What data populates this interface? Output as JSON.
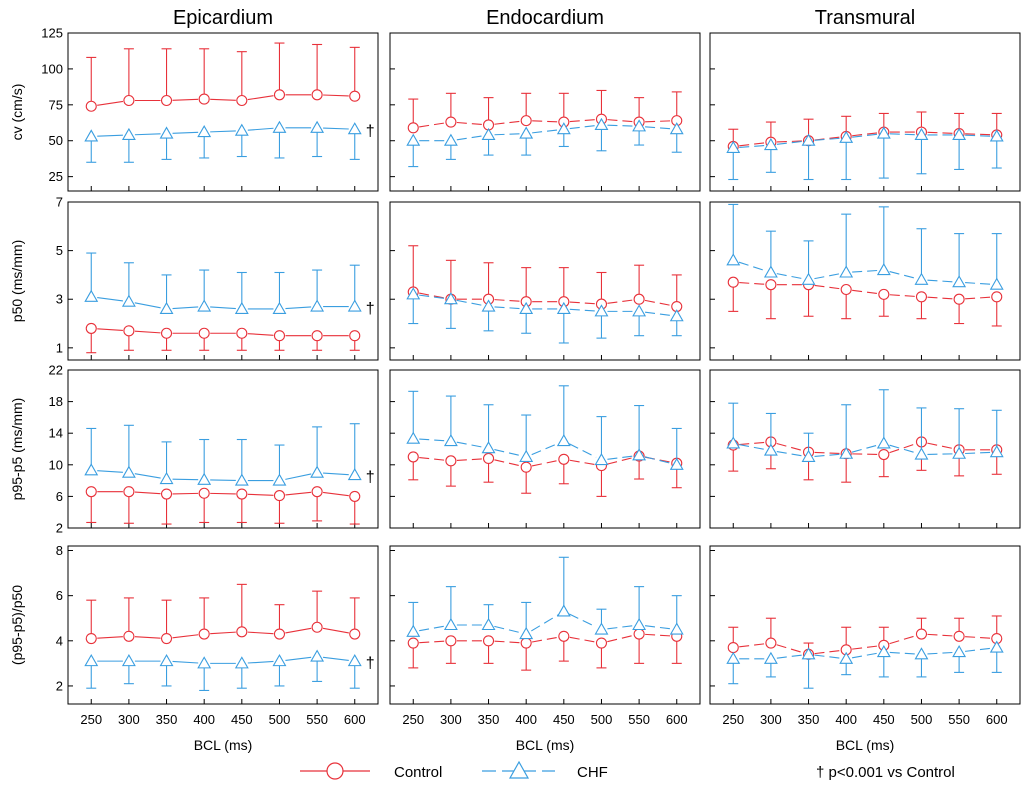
{
  "chart_data": {
    "type": "line",
    "columns": [
      "Epicardium",
      "Endocardium",
      "Transmural"
    ],
    "xlabel": "BCL  (ms)",
    "x": [
      250,
      300,
      350,
      400,
      450,
      500,
      550,
      600
    ],
    "legend": {
      "control": "Control",
      "chf": "CHF",
      "note": "† p<0.001 vs Control",
      "position": "bottom"
    },
    "colors": {
      "control": "#e8313a",
      "chf": "#3a9ee0"
    },
    "marker_symbol": "†",
    "rows": [
      {
        "ylabel": "cv (cm/s)",
        "ylim": [
          15,
          125
        ],
        "yticks": [
          25,
          50,
          75,
          100,
          125
        ],
        "panels": [
          {
            "control": [
              74,
              78,
              78,
              79,
              78,
              82,
              82,
              81
            ],
            "control_err": [
              108,
              114,
              114,
              114,
              112,
              118,
              117,
              115
            ],
            "chf": [
              53,
              54,
              55,
              56,
              57,
              59,
              59,
              58
            ],
            "chf_err": [
              35,
              35,
              37,
              38,
              39,
              38,
              39,
              37
            ],
            "sig": true
          },
          {
            "control": [
              59,
              63,
              61,
              64,
              63,
              65,
              63,
              64
            ],
            "control_err": [
              79,
              83,
              80,
              83,
              83,
              85,
              80,
              84
            ],
            "chf": [
              50,
              50,
              54,
              55,
              58,
              61,
              60,
              58
            ],
            "chf_err": [
              32,
              37,
              40,
              40,
              46,
              43,
              47,
              42
            ],
            "sig": false
          },
          {
            "control": [
              46,
              49,
              50,
              53,
              56,
              56,
              55,
              54
            ],
            "control_err": [
              58,
              63,
              65,
              67,
              69,
              70,
              69,
              69
            ],
            "chf": [
              45,
              47,
              50,
              52,
              55,
              54,
              54,
              53
            ],
            "chf_err": [
              23,
              28,
              23,
              23,
              24,
              27,
              30,
              31
            ],
            "sig": false
          }
        ]
      },
      {
        "ylabel": "p50 (ms/mm)",
        "ylim": [
          0.5,
          7
        ],
        "yticks": [
          1,
          3,
          5,
          7
        ],
        "panels": [
          {
            "control": [
              1.8,
              1.7,
              1.6,
              1.6,
              1.6,
              1.5,
              1.5,
              1.5
            ],
            "control_err": [
              0.8,
              0.9,
              0.9,
              0.9,
              0.9,
              0.9,
              0.9,
              0.9
            ],
            "chf": [
              3.1,
              2.9,
              2.6,
              2.7,
              2.6,
              2.6,
              2.7,
              2.7
            ],
            "chf_err": [
              4.9,
              4.5,
              4.0,
              4.2,
              4.1,
              4.1,
              4.2,
              4.4
            ],
            "sig": true
          },
          {
            "control": [
              3.3,
              3.0,
              3.0,
              2.9,
              2.9,
              2.8,
              3.0,
              2.7
            ],
            "control_err": [
              5.2,
              4.6,
              4.5,
              4.3,
              4.3,
              4.1,
              4.4,
              4.0
            ],
            "chf": [
              3.2,
              3.0,
              2.7,
              2.6,
              2.6,
              2.5,
              2.5,
              2.3
            ],
            "chf_err": [
              2.0,
              1.8,
              1.7,
              1.6,
              1.2,
              1.4,
              1.5,
              1.5
            ],
            "sig": false
          },
          {
            "control": [
              3.7,
              3.6,
              3.6,
              3.4,
              3.2,
              3.1,
              3.0,
              3.1
            ],
            "control_err": [
              2.5,
              2.2,
              2.3,
              2.2,
              2.3,
              2.2,
              2.0,
              1.9
            ],
            "chf": [
              4.6,
              4.1,
              3.8,
              4.1,
              4.2,
              3.8,
              3.7,
              3.6
            ],
            "chf_err": [
              6.9,
              5.8,
              5.4,
              6.5,
              6.8,
              5.9,
              5.7,
              5.7
            ],
            "sig": false
          }
        ]
      },
      {
        "ylabel": "p95-p5 (ms/mm)",
        "ylim": [
          2,
          22
        ],
        "yticks": [
          2,
          6,
          10,
          14,
          18,
          22
        ],
        "extra_ticks": [],
        "panels": [
          {
            "control": [
              6.6,
              6.6,
              6.3,
              6.4,
              6.3,
              6.1,
              6.6,
              6.0
            ],
            "control_err": [
              2.7,
              2.6,
              2.5,
              2.7,
              2.7,
              2.6,
              2.9,
              2.5
            ],
            "chf": [
              9.3,
              9.0,
              8.2,
              8.1,
              8.0,
              8.0,
              9.0,
              8.7
            ],
            "chf_err": [
              14.6,
              15.0,
              12.9,
              13.2,
              13.2,
              12.5,
              14.8,
              15.2
            ],
            "sig": true
          },
          {
            "control": [
              11.0,
              10.5,
              10.8,
              9.7,
              10.7,
              9.9,
              11.1,
              10.2
            ],
            "control_err": [
              8.1,
              7.3,
              7.8,
              6.4,
              7.6,
              6.0,
              8.2,
              7.1
            ],
            "chf": [
              13.3,
              13.0,
              12.1,
              11.0,
              13.0,
              10.6,
              11.2,
              10.0
            ],
            "chf_err": [
              19.3,
              18.7,
              17.6,
              16.3,
              20.0,
              16.1,
              17.5,
              14.6
            ],
            "sig": false
          },
          {
            "control": [
              12.5,
              12.9,
              11.6,
              11.4,
              11.3,
              12.9,
              11.9,
              11.9
            ],
            "control_err": [
              9.2,
              9.5,
              8.1,
              7.8,
              8.5,
              9.3,
              8.6,
              8.8
            ],
            "chf": [
              12.7,
              11.8,
              11.0,
              11.4,
              12.7,
              11.3,
              11.4,
              11.6
            ],
            "chf_err": [
              17.8,
              16.5,
              14.0,
              17.6,
              19.5,
              17.2,
              17.1,
              16.9
            ],
            "sig": false
          }
        ]
      },
      {
        "ylabel": "(p95-p5)/p50",
        "ylim": [
          1.2,
          8.2
        ],
        "yticks": [
          2,
          4,
          6,
          8
        ],
        "panels": [
          {
            "control": [
              4.1,
              4.2,
              4.1,
              4.3,
              4.4,
              4.3,
              4.6,
              4.3
            ],
            "control_err": [
              5.8,
              5.9,
              5.8,
              5.9,
              6.5,
              5.6,
              6.2,
              5.9
            ],
            "chf": [
              3.1,
              3.1,
              3.1,
              3.0,
              3.0,
              3.1,
              3.3,
              3.1
            ],
            "chf_err": [
              1.9,
              2.1,
              2.0,
              1.8,
              1.9,
              2.0,
              2.2,
              1.9
            ],
            "sig": true
          },
          {
            "control": [
              3.9,
              4.0,
              4.0,
              3.9,
              4.2,
              3.9,
              4.3,
              4.2
            ],
            "control_err": [
              2.8,
              3.0,
              3.0,
              2.7,
              3.1,
              2.8,
              3.0,
              3.0
            ],
            "chf": [
              4.4,
              4.7,
              4.7,
              4.3,
              5.3,
              4.5,
              4.7,
              4.5
            ],
            "chf_err": [
              5.7,
              6.4,
              5.6,
              5.7,
              7.7,
              5.4,
              6.4,
              6.0
            ],
            "sig": false
          },
          {
            "control": [
              3.7,
              3.9,
              3.4,
              3.6,
              3.8,
              4.3,
              4.2,
              4.1
            ],
            "control_err": [
              4.6,
              5.0,
              3.9,
              4.6,
              4.6,
              5.0,
              5.0,
              5.1
            ],
            "chf": [
              3.2,
              3.2,
              3.4,
              3.2,
              3.5,
              3.4,
              3.5,
              3.7
            ],
            "chf_err": [
              2.1,
              2.4,
              1.9,
              2.5,
              2.4,
              2.4,
              2.6,
              2.6
            ],
            "sig": false
          }
        ]
      }
    ]
  }
}
